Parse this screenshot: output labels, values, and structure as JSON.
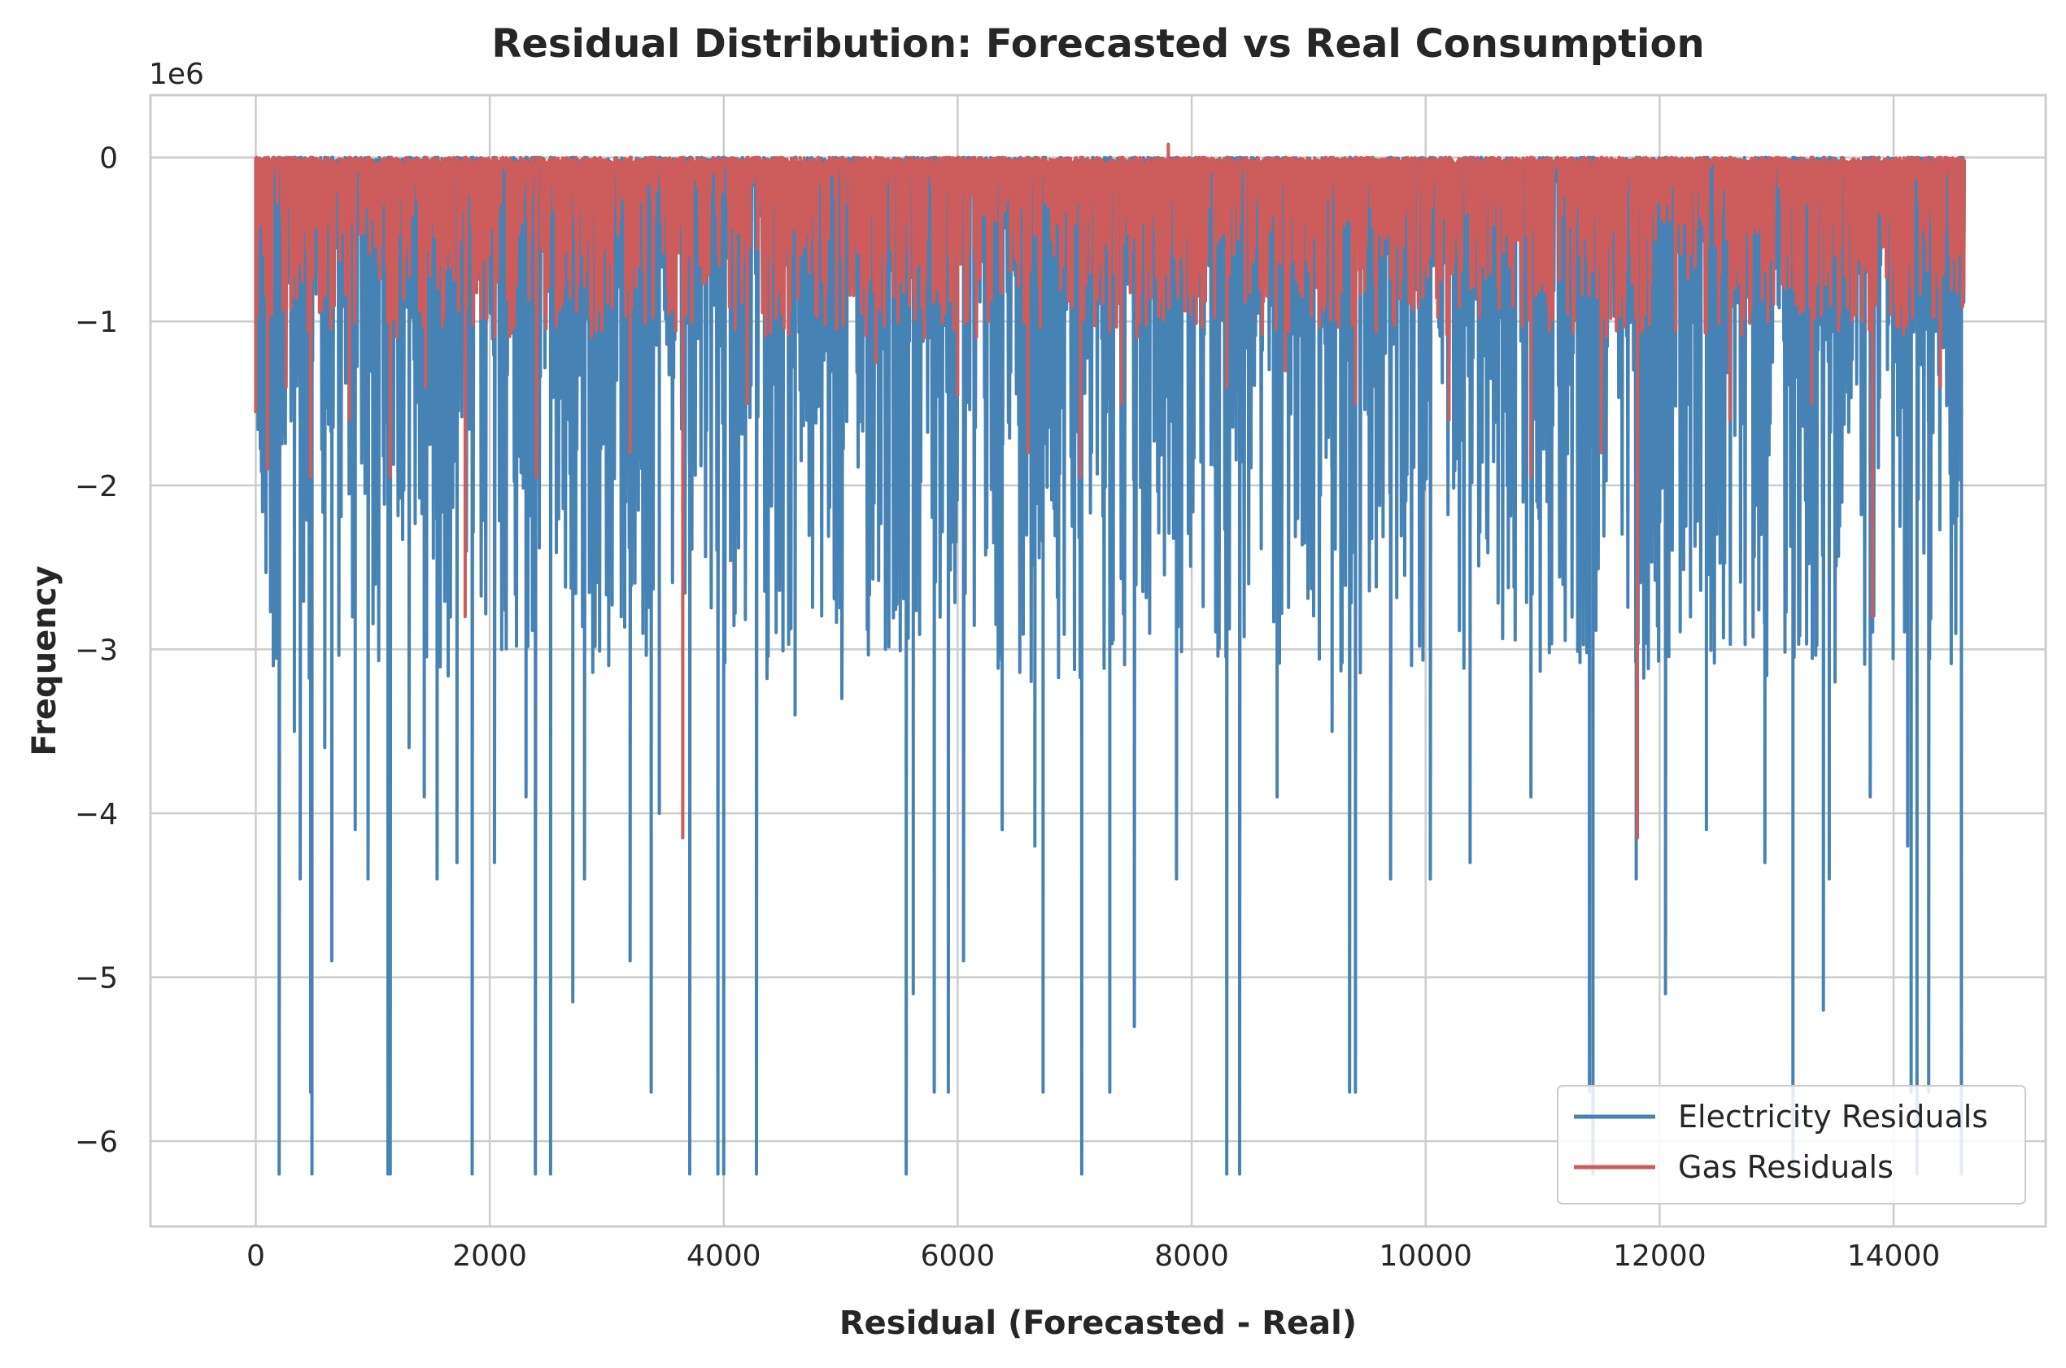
{
  "chart_data": {
    "type": "line",
    "title": "Residual Distribution: Forecasted vs Real Consumption",
    "xlabel": "Residual (Forecasted - Real)",
    "ylabel": "Frequency",
    "y_offset_label": "1e6",
    "xlim": [
      -900,
      15300
    ],
    "ylim": [
      -6.52,
      0.38
    ],
    "x_ticks": [
      0,
      2000,
      4000,
      6000,
      8000,
      10000,
      12000,
      14000
    ],
    "x_tick_labels": [
      "0",
      "2000",
      "4000",
      "6000",
      "8000",
      "10000",
      "12000",
      "14000"
    ],
    "y_ticks": [
      0,
      -1,
      -2,
      -3,
      -4,
      -5,
      -6
    ],
    "y_tick_labels": [
      "0",
      "−1",
      "−2",
      "−3",
      "−4",
      "−5",
      "−6"
    ],
    "grid": true,
    "legend_position": "lower-right",
    "x_range": [
      0,
      14600
    ],
    "series": [
      {
        "name": "Electricity Residuals",
        "color": "#4682b4",
        "spikes": [
          {
            "x": 150,
            "y": -3.1
          },
          {
            "x": 200,
            "y": -6.2
          },
          {
            "x": 330,
            "y": -3.5
          },
          {
            "x": 380,
            "y": -4.4
          },
          {
            "x": 470,
            "y": -5.7
          },
          {
            "x": 480,
            "y": -6.2
          },
          {
            "x": 590,
            "y": -3.6
          },
          {
            "x": 650,
            "y": -4.9
          },
          {
            "x": 850,
            "y": -4.1
          },
          {
            "x": 960,
            "y": -4.4
          },
          {
            "x": 1130,
            "y": -6.2
          },
          {
            "x": 1150,
            "y": -6.2
          },
          {
            "x": 1310,
            "y": -3.6
          },
          {
            "x": 1440,
            "y": -3.9
          },
          {
            "x": 1550,
            "y": -4.4
          },
          {
            "x": 1720,
            "y": -4.3
          },
          {
            "x": 1850,
            "y": -6.2
          },
          {
            "x": 2040,
            "y": -4.3
          },
          {
            "x": 2310,
            "y": -3.9
          },
          {
            "x": 2390,
            "y": -6.2
          },
          {
            "x": 2520,
            "y": -6.2
          },
          {
            "x": 2710,
            "y": -5.15
          },
          {
            "x": 2810,
            "y": -4.4
          },
          {
            "x": 3200,
            "y": -4.9
          },
          {
            "x": 3380,
            "y": -5.7
          },
          {
            "x": 3450,
            "y": -4.0
          },
          {
            "x": 3710,
            "y": -6.2
          },
          {
            "x": 3950,
            "y": -6.2
          },
          {
            "x": 4000,
            "y": -6.2
          },
          {
            "x": 4280,
            "y": -6.2
          },
          {
            "x": 4610,
            "y": -3.4
          },
          {
            "x": 5010,
            "y": -3.3
          },
          {
            "x": 5560,
            "y": -6.2
          },
          {
            "x": 5620,
            "y": -5.1
          },
          {
            "x": 5800,
            "y": -5.7
          },
          {
            "x": 5920,
            "y": -5.7
          },
          {
            "x": 6050,
            "y": -4.9
          },
          {
            "x": 6380,
            "y": -4.1
          },
          {
            "x": 6660,
            "y": -4.2
          },
          {
            "x": 6730,
            "y": -5.7
          },
          {
            "x": 7060,
            "y": -6.2
          },
          {
            "x": 7300,
            "y": -5.7
          },
          {
            "x": 7510,
            "y": -5.3
          },
          {
            "x": 7870,
            "y": -4.4
          },
          {
            "x": 8300,
            "y": -6.2
          },
          {
            "x": 8410,
            "y": -6.2
          },
          {
            "x": 8730,
            "y": -3.9
          },
          {
            "x": 9200,
            "y": -3.5
          },
          {
            "x": 9350,
            "y": -5.7
          },
          {
            "x": 9400,
            "y": -5.7
          },
          {
            "x": 9700,
            "y": -4.4
          },
          {
            "x": 10040,
            "y": -4.4
          },
          {
            "x": 10380,
            "y": -4.3
          },
          {
            "x": 10900,
            "y": -3.9
          },
          {
            "x": 11400,
            "y": -5.7
          },
          {
            "x": 11430,
            "y": -6.2
          },
          {
            "x": 11800,
            "y": -4.4
          },
          {
            "x": 12050,
            "y": -5.1
          },
          {
            "x": 12400,
            "y": -4.1
          },
          {
            "x": 12900,
            "y": -4.3
          },
          {
            "x": 13140,
            "y": -6.2
          },
          {
            "x": 13400,
            "y": -5.2
          },
          {
            "x": 13450,
            "y": -4.4
          },
          {
            "x": 13800,
            "y": -3.9
          },
          {
            "x": 14120,
            "y": -4.2
          },
          {
            "x": 14150,
            "y": -5.7
          },
          {
            "x": 14200,
            "y": -6.2
          },
          {
            "x": 14300,
            "y": -5.7
          },
          {
            "x": 14580,
            "y": -6.2
          }
        ]
      },
      {
        "name": "Gas Residuals",
        "color": "#cd5c5c",
        "spikes": [
          {
            "x": 0,
            "y": -1.55
          },
          {
            "x": 100,
            "y": -1.9
          },
          {
            "x": 260,
            "y": -1.4
          },
          {
            "x": 470,
            "y": -1.95
          },
          {
            "x": 800,
            "y": -1.6
          },
          {
            "x": 1150,
            "y": -1.95
          },
          {
            "x": 1450,
            "y": -1.4
          },
          {
            "x": 1790,
            "y": -2.8
          },
          {
            "x": 2400,
            "y": -1.95
          },
          {
            "x": 3200,
            "y": -1.8
          },
          {
            "x": 3650,
            "y": -4.15
          },
          {
            "x": 4200,
            "y": -1.5
          },
          {
            "x": 5300,
            "y": -1.25
          },
          {
            "x": 6000,
            "y": -1.45
          },
          {
            "x": 6600,
            "y": -1.8
          },
          {
            "x": 7050,
            "y": -1.95
          },
          {
            "x": 7400,
            "y": -1.5
          },
          {
            "x": 8300,
            "y": -1.4
          },
          {
            "x": 8800,
            "y": -1.3
          },
          {
            "x": 9400,
            "y": -1.5
          },
          {
            "x": 10200,
            "y": -1.6
          },
          {
            "x": 10900,
            "y": -1.95
          },
          {
            "x": 11500,
            "y": -1.8
          },
          {
            "x": 11810,
            "y": -4.15
          },
          {
            "x": 12600,
            "y": -1.6
          },
          {
            "x": 13300,
            "y": -1.5
          },
          {
            "x": 13820,
            "y": -2.8
          },
          {
            "x": 14400,
            "y": -1.4
          }
        ],
        "peak_positive": {
          "x": 7800,
          "y": 0.08
        }
      }
    ]
  }
}
